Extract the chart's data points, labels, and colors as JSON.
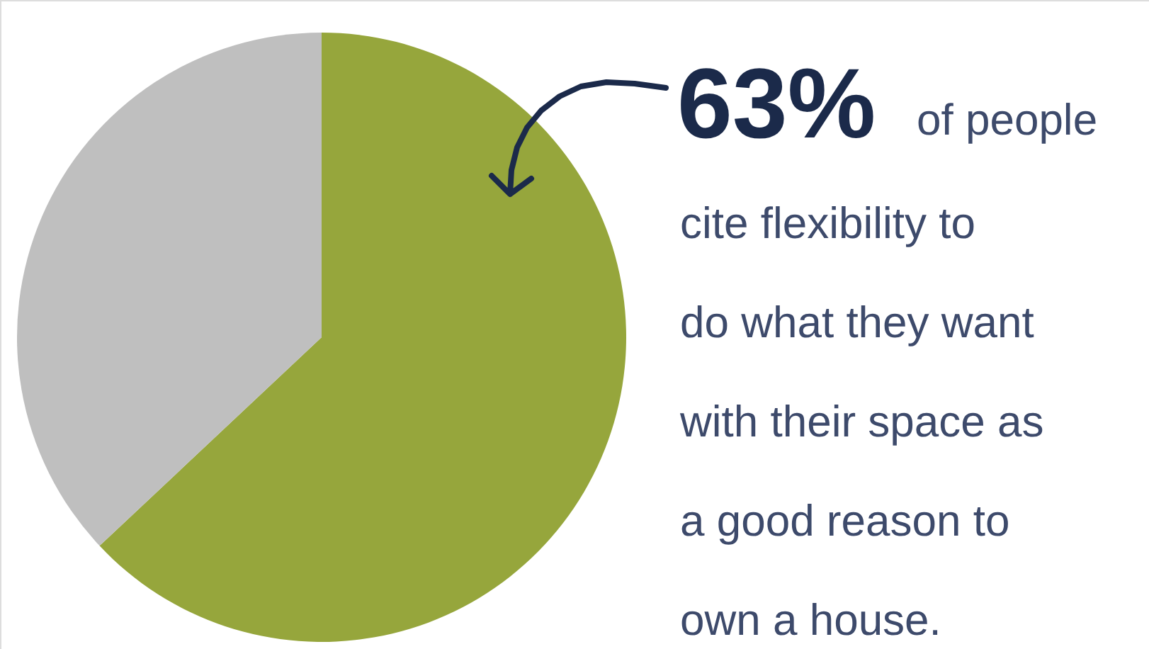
{
  "chart_data": {
    "type": "pie",
    "categories": [
      null,
      null
    ],
    "values": [
      63,
      37
    ],
    "colors": [
      "#96a63c",
      "#bfbfbf"
    ],
    "annotations": [
      "63%",
      "of people cite flexibility to do what they want with their space as a good reason to own a house."
    ]
  }
}
